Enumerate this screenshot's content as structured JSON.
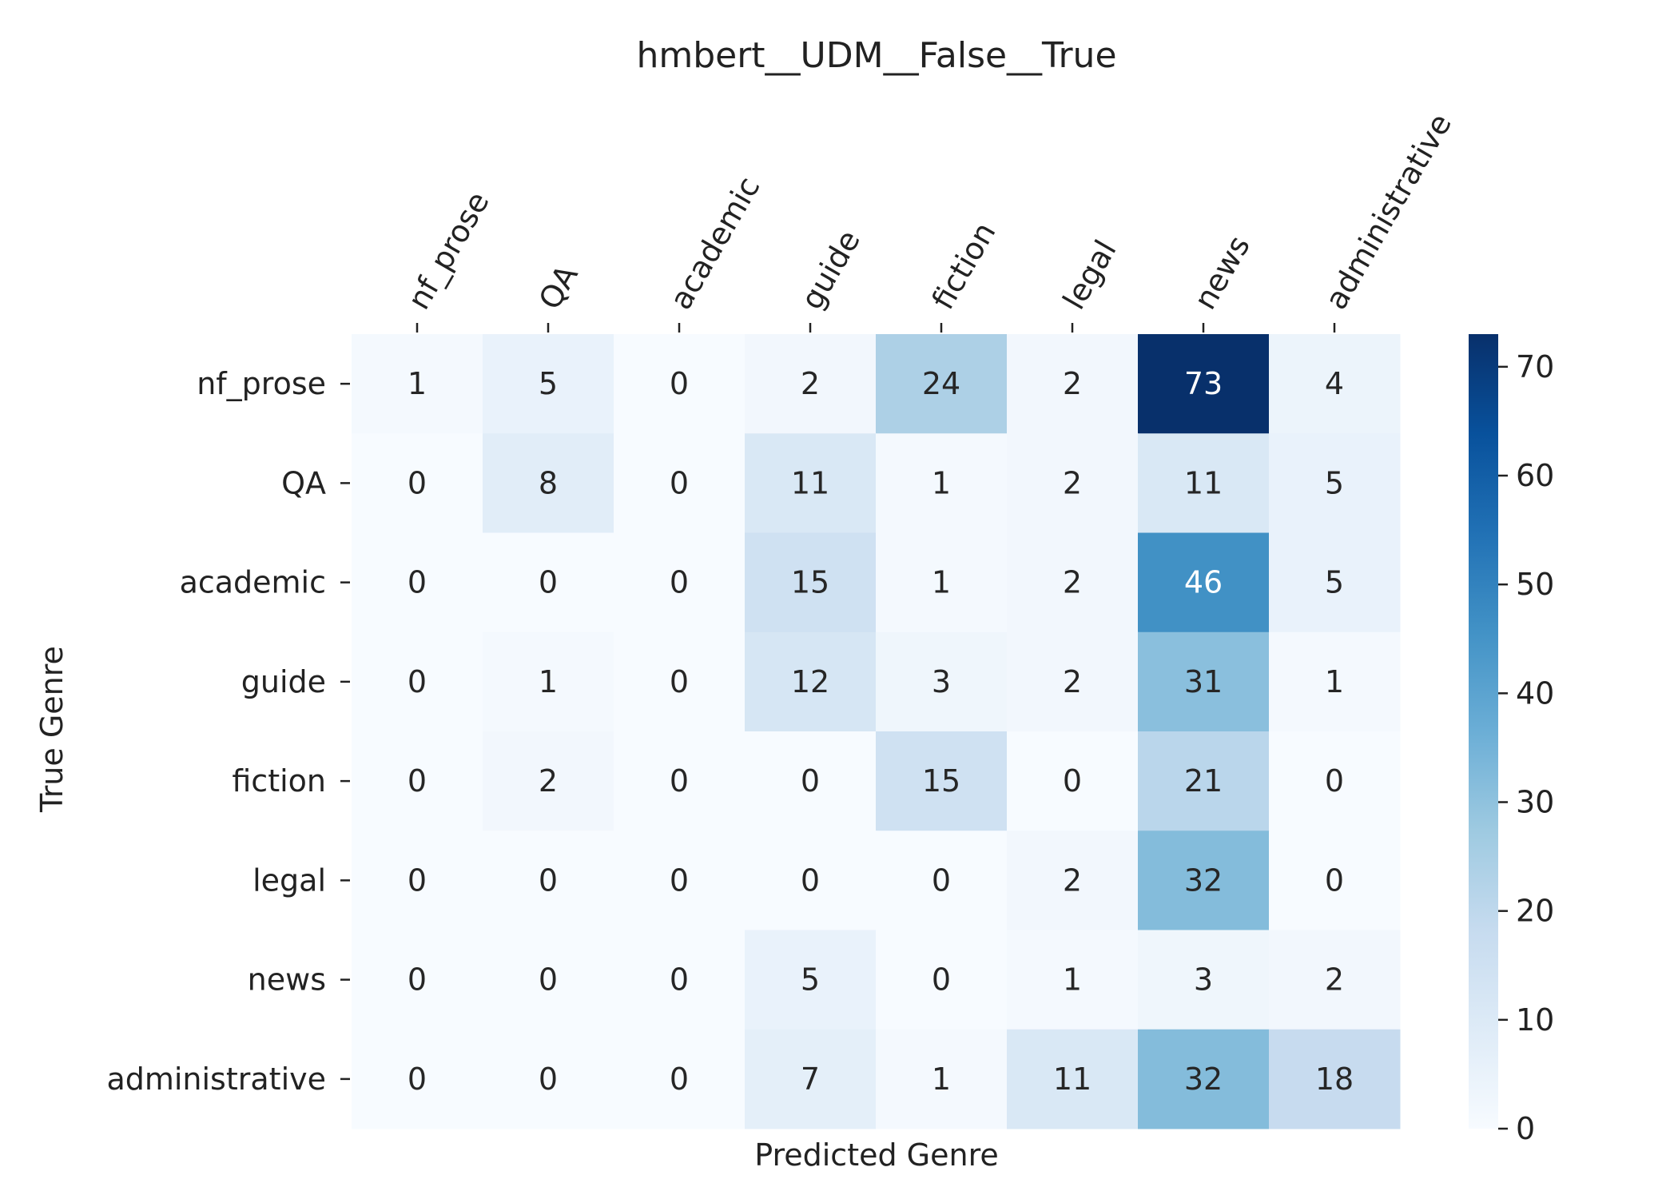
{
  "chart_data": {
    "type": "heatmap",
    "title": "hmbert__UDM__False__True",
    "xlabel": "Predicted Genre",
    "ylabel": "True Genre",
    "x_categories": [
      "nf_prose",
      "QA",
      "academic",
      "guide",
      "fiction",
      "legal",
      "news",
      "administrative"
    ],
    "y_categories": [
      "nf_prose",
      "QA",
      "academic",
      "guide",
      "fiction",
      "legal",
      "news",
      "administrative"
    ],
    "values": [
      [
        1,
        5,
        0,
        2,
        24,
        2,
        73,
        4
      ],
      [
        0,
        8,
        0,
        11,
        1,
        2,
        11,
        5
      ],
      [
        0,
        0,
        0,
        15,
        1,
        2,
        46,
        5
      ],
      [
        0,
        1,
        0,
        12,
        3,
        2,
        31,
        1
      ],
      [
        0,
        2,
        0,
        0,
        15,
        0,
        21,
        0
      ],
      [
        0,
        0,
        0,
        0,
        0,
        2,
        32,
        0
      ],
      [
        0,
        0,
        0,
        5,
        0,
        1,
        3,
        2
      ],
      [
        0,
        0,
        0,
        7,
        1,
        11,
        32,
        18
      ]
    ],
    "colormap": "Blues",
    "color_range": [
      0,
      73
    ],
    "colorbar_ticks": [
      0,
      10,
      20,
      30,
      40,
      50,
      60,
      70
    ],
    "annotate": true,
    "x_tick_position": "top",
    "grid": false
  }
}
